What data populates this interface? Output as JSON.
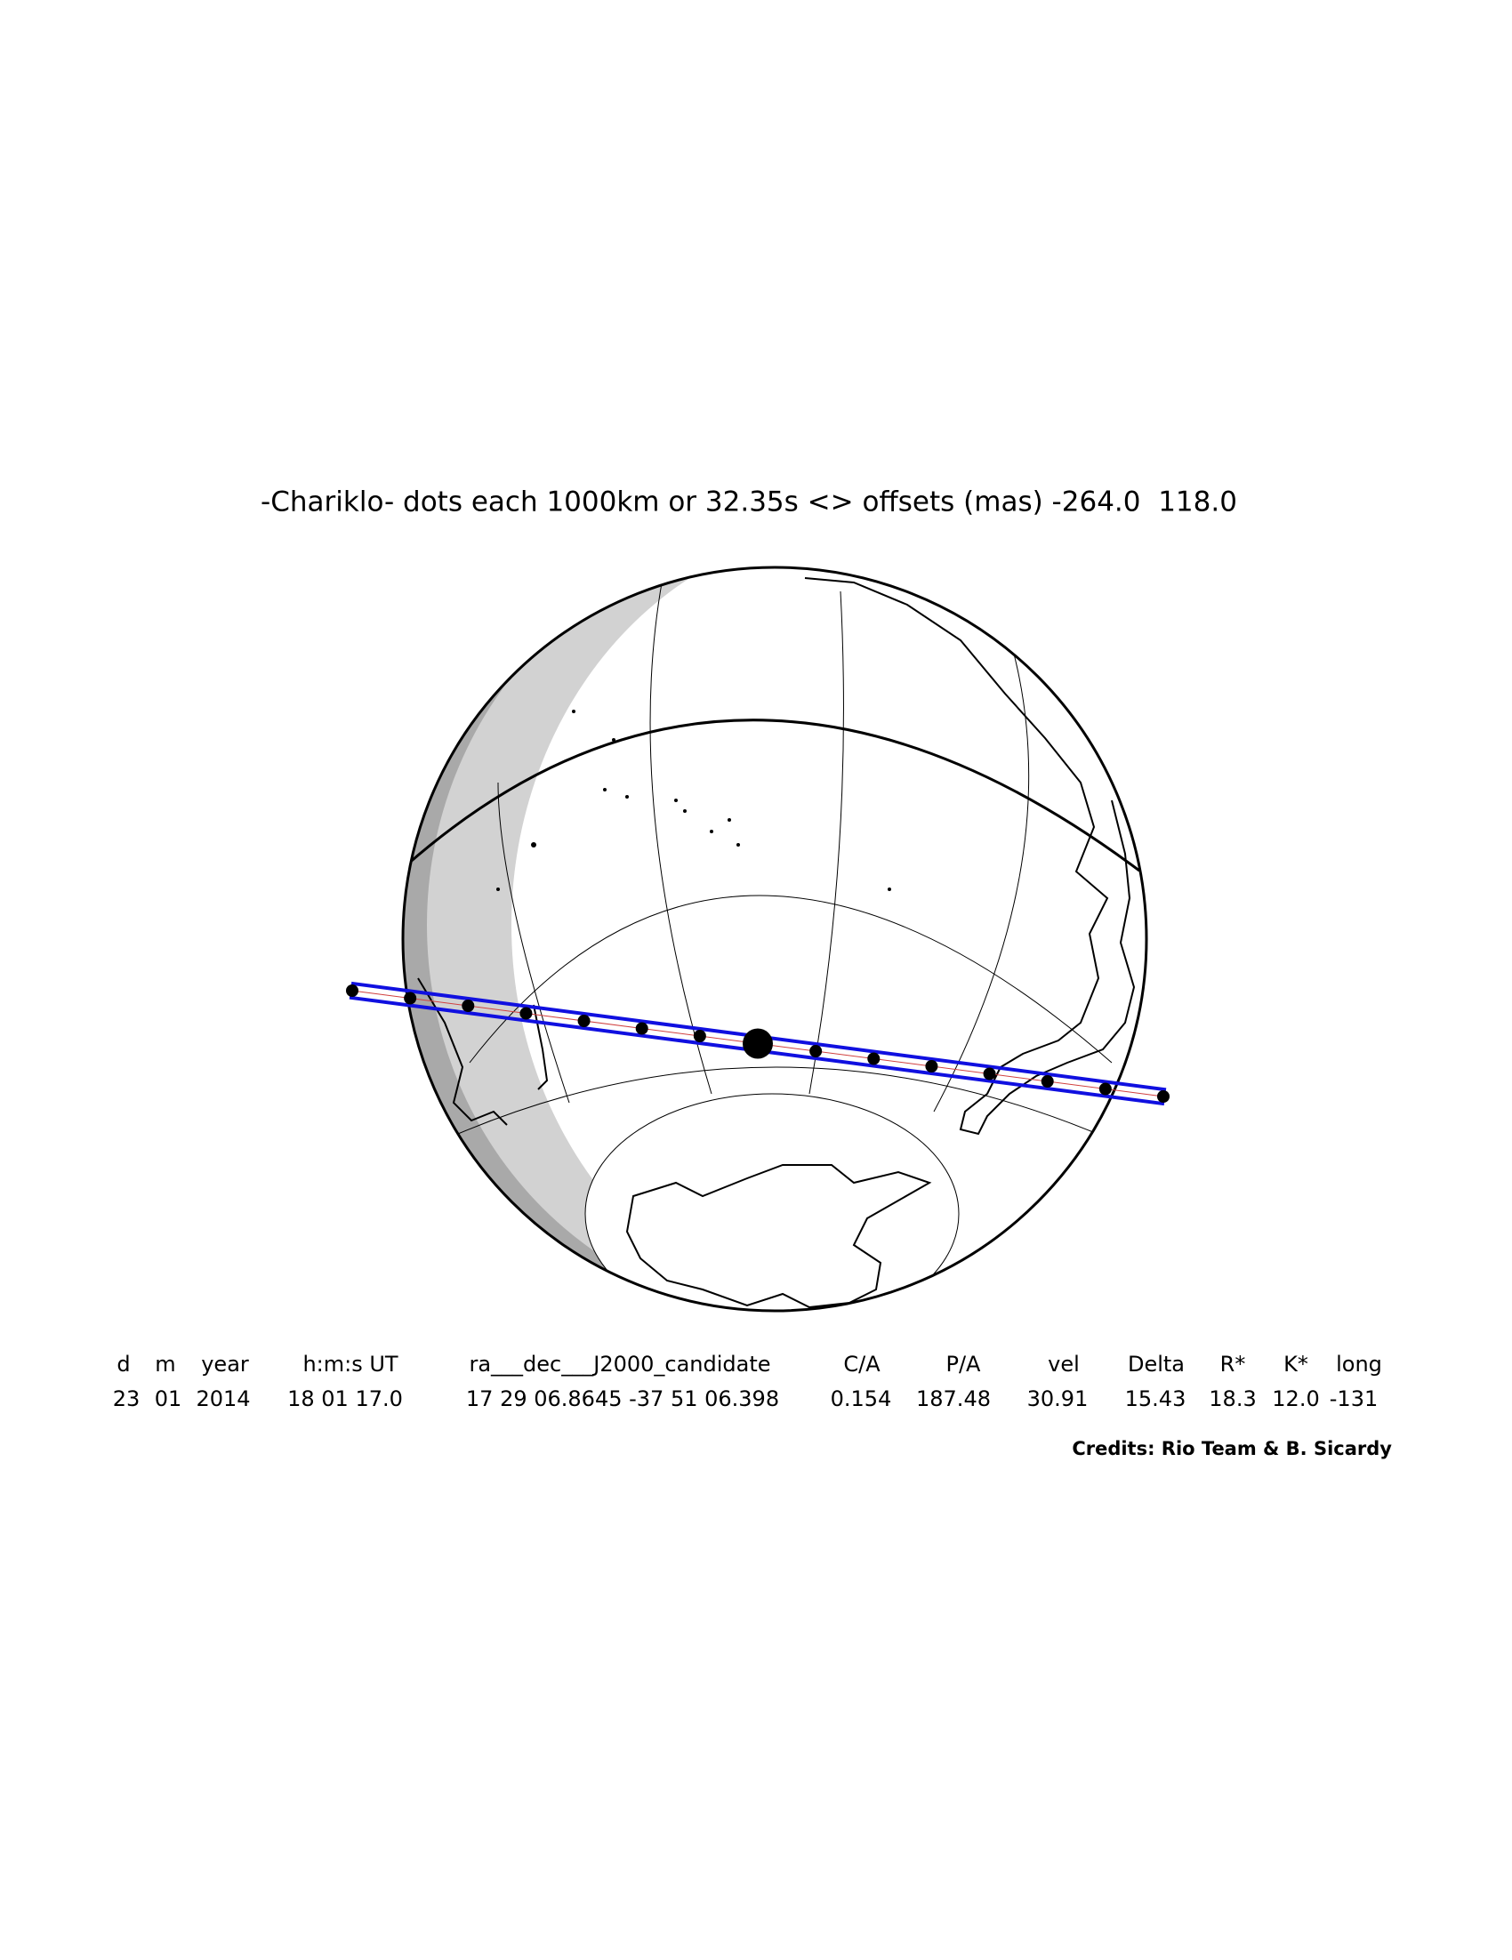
{
  "title": "-Chariklo- dots each 1000km or 32.35s <> offsets (mas) -264.0  118.0",
  "table": {
    "headers": [
      "d",
      "m",
      "year",
      "h:m:s UT",
      "ra___dec___J2000_candidate",
      "C/A",
      "P/A",
      "vel",
      "Delta",
      "R*",
      "K*",
      "long"
    ],
    "rows": [
      [
        "23",
        "01",
        "2014",
        "18 01 17.0",
        "17 29 06.8645 -37 51 06.398",
        "0.154",
        "187.48",
        "30.91",
        "15.43",
        "18.3",
        "12.0",
        "-131"
      ]
    ]
  },
  "credits": "Credits: Rio Team & B. Sicardy"
}
